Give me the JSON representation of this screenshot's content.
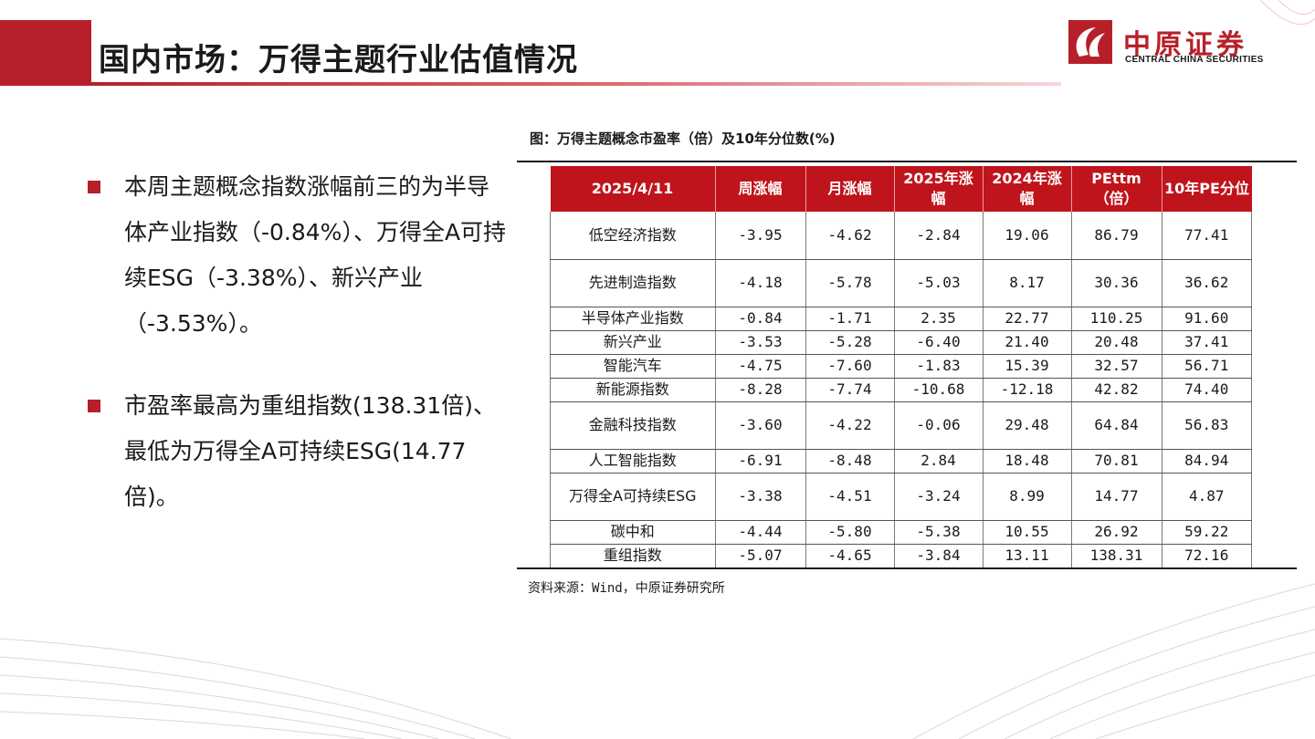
{
  "header": {
    "title": "国内市场：万得主题行业估值情况"
  },
  "logo": {
    "cn": "中原证券",
    "en": "CENTRAL CHINA SECURITIES"
  },
  "bullets": [
    {
      "text": "本周主题概念指数涨幅前三的为半导体产业指数（-0.84%）、万得全A可持续ESG（-3.38%）、新兴产业（-3.53%）。"
    },
    {
      "text": "市盈率最高为重组指数(138.31倍)、最低为万得全A可持续ESG(14.77倍)。"
    }
  ],
  "figure": {
    "caption": "图：万得主题概念市盈率（倍）及10年分位数(%)",
    "source": "资料来源：Wind，中原证券研究所"
  },
  "table": {
    "headers": [
      "2025/4/11",
      "周涨幅",
      "月涨幅",
      "2025年涨幅",
      "2024年涨幅",
      "PEttm（倍）",
      "10年PE分位"
    ],
    "rows": [
      {
        "name": "低空经济指数",
        "cells": [
          "-3.95",
          "-4.62",
          "-2.84",
          "19.06",
          "86.79",
          "77.41"
        ],
        "h": 52
      },
      {
        "name": "先进制造指数",
        "cells": [
          "-4.18",
          "-5.78",
          "-5.03",
          "8.17",
          "30.36",
          "36.62"
        ],
        "h": 52
      },
      {
        "name": "半导体产业指数",
        "cells": [
          "-0.84",
          "-1.71",
          "2.35",
          "22.77",
          "110.25",
          "91.60"
        ],
        "h": 26
      },
      {
        "name": "新兴产业",
        "cells": [
          "-3.53",
          "-5.28",
          "-6.40",
          "21.40",
          "20.48",
          "37.41"
        ],
        "h": 26
      },
      {
        "name": "智能汽车",
        "cells": [
          "-4.75",
          "-7.60",
          "-1.83",
          "15.39",
          "32.57",
          "56.71"
        ],
        "h": 26
      },
      {
        "name": "新能源指数",
        "cells": [
          "-8.28",
          "-7.74",
          "-10.68",
          "-12.18",
          "42.82",
          "74.40"
        ],
        "h": 26
      },
      {
        "name": "金融科技指数",
        "cells": [
          "-3.60",
          "-4.22",
          "-0.06",
          "29.48",
          "64.84",
          "56.83"
        ],
        "h": 52
      },
      {
        "name": "人工智能指数",
        "cells": [
          "-6.91",
          "-8.48",
          "2.84",
          "18.48",
          "70.81",
          "84.94"
        ],
        "h": 26
      },
      {
        "name": "万得全A可持续ESG",
        "cells": [
          "-3.38",
          "-4.51",
          "-3.24",
          "8.99",
          "14.77",
          "4.87"
        ],
        "h": 52
      },
      {
        "name": "碳中和",
        "cells": [
          "-4.44",
          "-5.80",
          "-5.38",
          "10.55",
          "26.92",
          "59.22"
        ],
        "h": 26
      },
      {
        "name": "重组指数",
        "cells": [
          "-5.07",
          "-4.65",
          "-3.84",
          "13.11",
          "138.31",
          "72.16"
        ],
        "h": 26
      }
    ]
  },
  "colors": {
    "accent": "#b7202a",
    "table_header": "#c0141c"
  }
}
